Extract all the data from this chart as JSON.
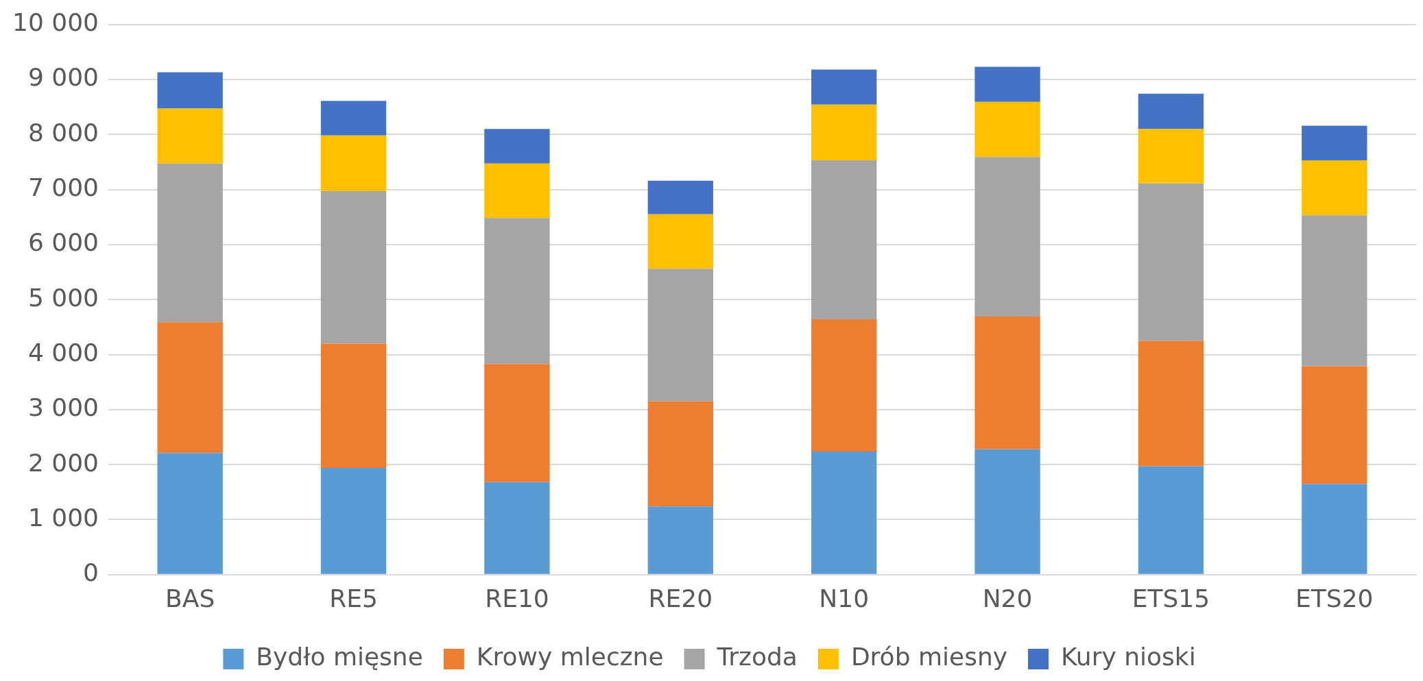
{
  "chart_data": {
    "type": "bar",
    "stacked": true,
    "categories": [
      "BAS",
      "RE5",
      "RE10",
      "RE20",
      "N10",
      "N20",
      "ETS15",
      "ETS20"
    ],
    "series": [
      {
        "name": "Bydło mięsne",
        "color": "#5b9bd5",
        "values": [
          2210,
          1940,
          1680,
          1240,
          2240,
          2280,
          1970,
          1650
        ]
      },
      {
        "name": "Krowy mleczne",
        "color": "#ed7d31",
        "values": [
          2380,
          2260,
          2150,
          1910,
          2400,
          2410,
          2280,
          2140
        ]
      },
      {
        "name": "Trzoda",
        "color": "#a5a5a5",
        "values": [
          2880,
          2770,
          2650,
          2410,
          2890,
          2900,
          2860,
          2740
        ]
      },
      {
        "name": "Drób miesny",
        "color": "#ffc000",
        "values": [
          1000,
          1010,
          990,
          990,
          1010,
          1000,
          990,
          1000
        ]
      },
      {
        "name": "Kury nioski",
        "color": "#4472c4",
        "values": [
          660,
          630,
          630,
          610,
          640,
          640,
          640,
          630
        ]
      }
    ],
    "ylim": [
      0,
      10000
    ],
    "yticks": [
      0,
      {
        "value": 1000,
        "label": "1 000"
      },
      {
        "value": 2000,
        "label": "2 000"
      },
      {
        "value": 3000,
        "label": "3 000"
      },
      {
        "value": 4000,
        "label": "4 000"
      },
      {
        "value": 5000,
        "label": "5 000"
      },
      {
        "value": 6000,
        "label": "6 000"
      },
      {
        "value": 7000,
        "label": "7 000"
      },
      {
        "value": 8000,
        "label": "8 000"
      },
      {
        "value": 9000,
        "label": "9 000"
      },
      {
        "value": 10000,
        "label": "10 000"
      }
    ],
    "grid": "y",
    "legend": "bottom"
  }
}
